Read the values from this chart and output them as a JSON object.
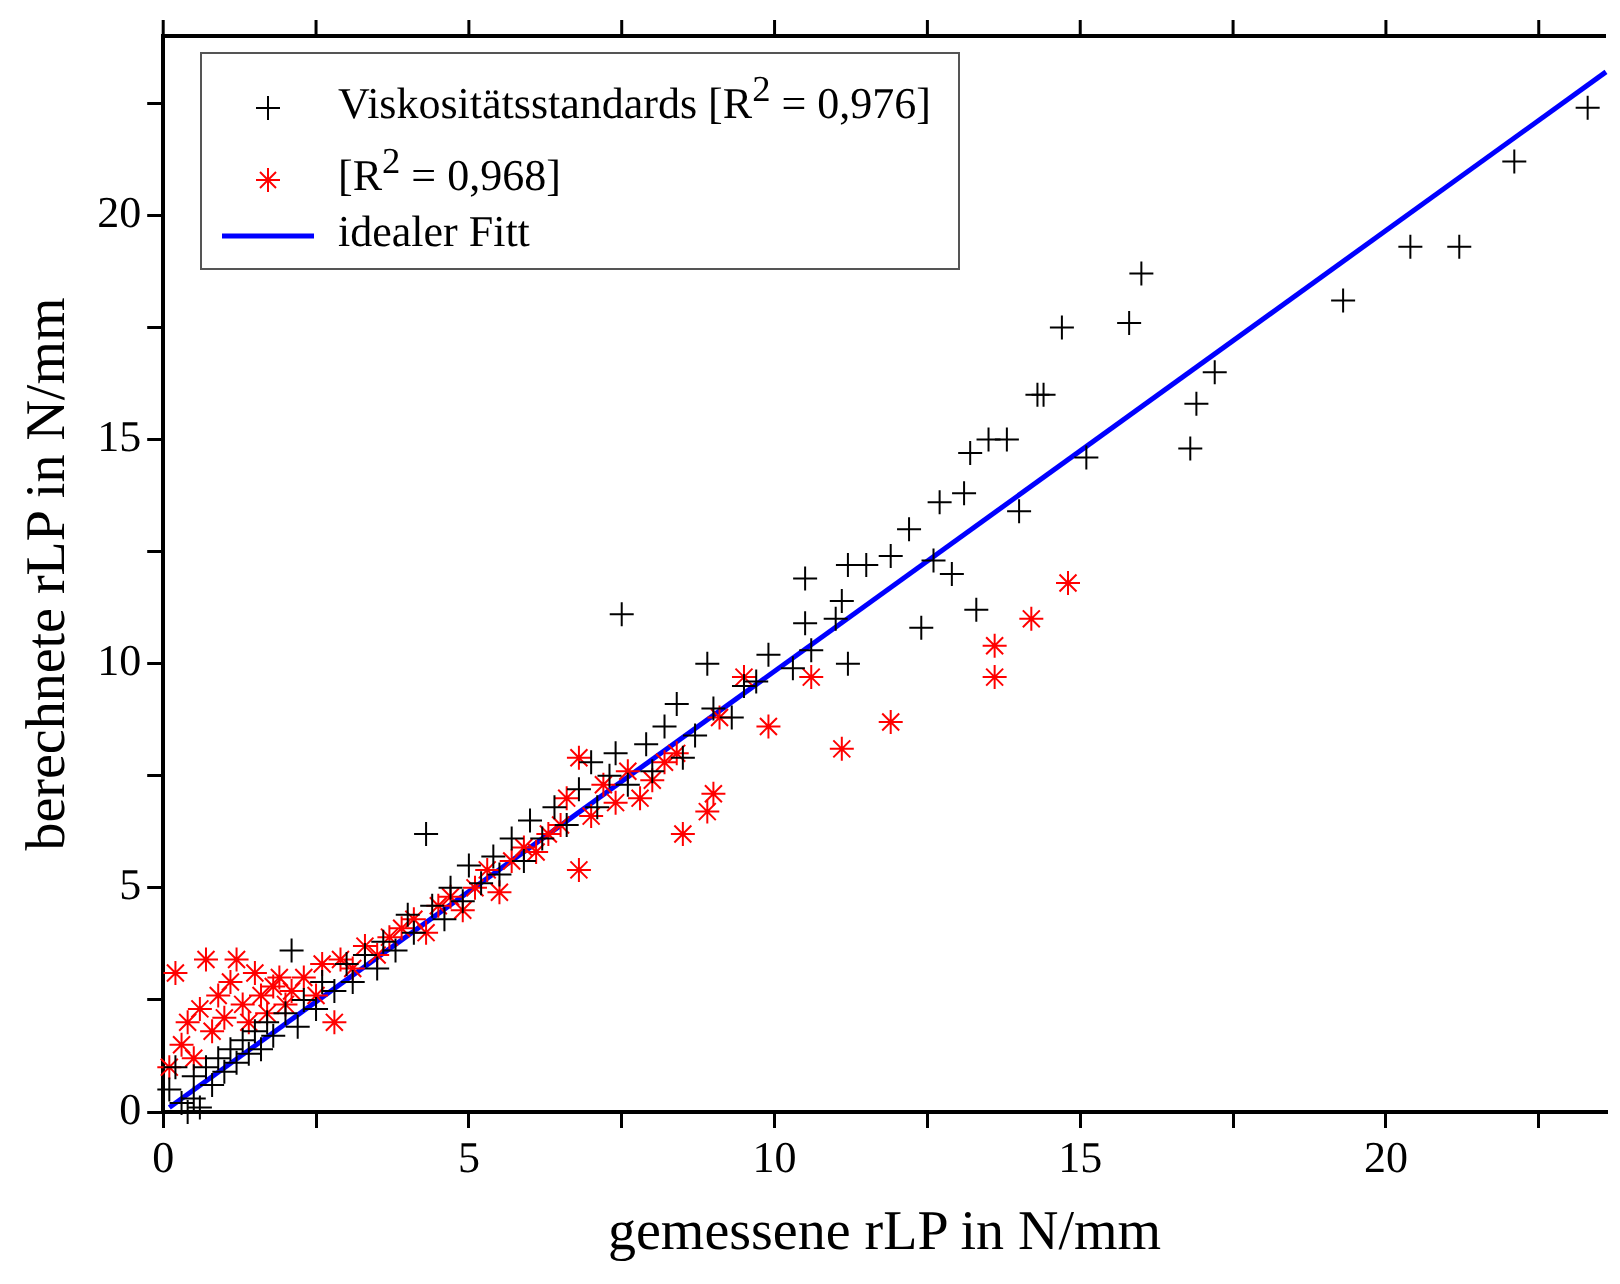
{
  "chart_data": {
    "type": "scatter",
    "xlabel": "gemessene rLP in N/mm",
    "ylabel": "berechnete rLP in N/mm",
    "xlim": [
      0,
      23.6
    ],
    "ylim": [
      0,
      24
    ],
    "xticks": [
      0,
      {
        "value": 2.5,
        "label": null
      },
      5,
      {
        "value": 7.5,
        "label": null
      },
      10,
      {
        "value": 12.5,
        "label": null
      },
      15,
      {
        "value": 17.5,
        "label": null
      },
      20,
      {
        "value": 22.5,
        "label": null
      }
    ],
    "yticks": [
      0,
      {
        "value": 2.5,
        "label": null
      },
      5,
      {
        "value": 7.5,
        "label": null
      },
      10,
      {
        "value": 12.5,
        "label": null
      },
      15,
      {
        "value": 17.5,
        "label": null
      },
      20,
      {
        "value": 22.5,
        "label": null
      }
    ],
    "legend": "top left",
    "series": [
      {
        "name": "Viskositätsstandards [R$^{2}$ = 0,976]",
        "color": "#000000",
        "marker": "cross",
        "x": [
          0.1,
          0.2,
          0.3,
          0.4,
          0.5,
          0.5,
          0.6,
          0.7,
          0.8,
          0.9,
          1.0,
          1.1,
          1.2,
          1.3,
          1.4,
          1.5,
          1.6,
          1.7,
          1.8,
          2.0,
          2.1,
          2.2,
          2.3,
          2.5,
          2.6,
          2.8,
          3.0,
          3.1,
          3.3,
          3.5,
          3.6,
          3.8,
          4.0,
          4.1,
          4.3,
          4.4,
          4.6,
          4.7,
          4.9,
          5.0,
          5.2,
          5.4,
          5.5,
          5.7,
          5.9,
          6.0,
          6.2,
          6.4,
          6.6,
          6.8,
          7.0,
          7.1,
          7.3,
          7.4,
          7.6,
          7.5,
          7.9,
          8.0,
          8.2,
          8.4,
          8.5,
          8.7,
          8.9,
          9.0,
          9.3,
          9.5,
          9.9,
          9.7,
          10.3,
          10.5,
          10.5,
          10.6,
          11.0,
          11.1,
          11.2,
          11.2,
          11.5,
          11.9,
          12.2,
          12.4,
          12.6,
          12.7,
          12.9,
          13.1,
          13.2,
          13.3,
          13.5,
          13.8,
          14.0,
          14.3,
          14.4,
          14.7,
          15.1,
          15.8,
          16.0,
          16.8,
          16.9,
          17.2,
          19.3,
          20.4,
          21.2,
          22.1,
          23.3
        ],
        "values": [
          0.5,
          1.0,
          0.2,
          0.0,
          0.3,
          0.8,
          0.1,
          1.0,
          0.6,
          1.2,
          0.9,
          1.4,
          1.1,
          1.6,
          1.3,
          1.8,
          1.4,
          2.0,
          1.7,
          2.2,
          3.6,
          1.9,
          2.5,
          2.3,
          2.9,
          2.7,
          3.3,
          2.9,
          3.5,
          3.2,
          3.8,
          3.6,
          4.4,
          4.0,
          6.2,
          4.6,
          4.3,
          5.0,
          4.7,
          5.5,
          5.1,
          5.7,
          5.3,
          6.1,
          5.6,
          6.5,
          6.1,
          6.8,
          6.4,
          7.2,
          7.8,
          6.8,
          7.5,
          8.0,
          7.3,
          11.1,
          8.2,
          7.6,
          8.6,
          9.1,
          7.9,
          8.4,
          10.0,
          9.0,
          8.8,
          9.5,
          10.2,
          9.6,
          9.9,
          10.9,
          11.9,
          10.3,
          11.0,
          11.4,
          10.0,
          12.2,
          12.2,
          12.4,
          13.0,
          10.8,
          12.3,
          13.6,
          12.0,
          13.8,
          14.7,
          11.2,
          15.0,
          15.0,
          13.4,
          16.0,
          16.0,
          17.5,
          14.6,
          17.6,
          18.7,
          14.8,
          15.8,
          16.5,
          18.1,
          19.3,
          19.3,
          21.2,
          22.4
        ]
      },
      {
        "name": "[R$^{2}$ = 0,968]",
        "color": "#ff0000",
        "x": [
          0.1,
          0.2,
          0.3,
          0.4,
          0.5,
          0.6,
          0.7,
          0.8,
          0.9,
          1.0,
          1.1,
          1.2,
          1.3,
          1.4,
          1.5,
          1.6,
          1.7,
          1.8,
          1.9,
          2.0,
          2.1,
          2.3,
          2.5,
          2.6,
          2.8,
          2.9,
          3.1,
          3.3,
          3.5,
          3.7,
          3.9,
          4.1,
          4.3,
          4.5,
          4.7,
          4.9,
          5.1,
          5.3,
          5.5,
          5.7,
          5.9,
          6.1,
          6.3,
          6.5,
          6.6,
          6.8,
          6.8,
          7.0,
          7.2,
          7.4,
          7.6,
          7.8,
          8.0,
          8.2,
          8.4,
          8.5,
          8.9,
          9.0,
          9.1,
          9.5,
          9.9,
          10.6,
          11.1,
          11.9,
          13.6,
          13.6,
          14.2,
          14.8
        ],
        "values": [
          1.0,
          3.1,
          1.5,
          2.0,
          1.2,
          2.3,
          3.4,
          1.8,
          2.6,
          2.1,
          2.9,
          3.4,
          2.4,
          2.0,
          3.1,
          2.6,
          2.2,
          2.8,
          3.0,
          2.4,
          2.7,
          3.0,
          2.6,
          3.3,
          2.0,
          3.4,
          3.2,
          3.7,
          3.5,
          3.9,
          4.1,
          4.3,
          4.0,
          4.6,
          4.8,
          4.5,
          5.0,
          5.4,
          4.9,
          5.6,
          5.9,
          5.8,
          6.2,
          6.4,
          7.0,
          5.4,
          7.9,
          6.6,
          7.3,
          6.9,
          7.6,
          7.0,
          7.4,
          7.8,
          8.0,
          6.2,
          6.7,
          7.1,
          8.8,
          9.7,
          8.6,
          9.7,
          8.1,
          8.7,
          9.7,
          10.4,
          11.0,
          11.8
        ]
      },
      {
        "name": "idealer Fitt",
        "type": "line",
        "color": "#0000ff",
        "marker": "none",
        "line_style": "solid",
        "x": [
          0.1,
          23.6
        ],
        "values": [
          0.1,
          23.2
        ]
      }
    ]
  }
}
